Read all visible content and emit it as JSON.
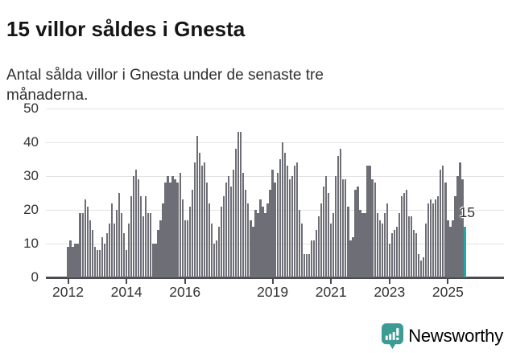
{
  "header": {
    "title": "15 villor såldes i Gnesta",
    "subtitle": "Antal sålda villor i Gnesta under de senaste tre månaderna."
  },
  "branding": {
    "logo_text": "Newsworthy",
    "logo_icon": "bar-chart-speech-bubble-icon",
    "logo_color": "#3d9b94"
  },
  "colors": {
    "bar": "#6e6e76",
    "highlight": "#23a7a7",
    "grid": "#e3e3e3",
    "axis": "#4a4a4f",
    "title_text": "#151515",
    "body_text": "#333333"
  },
  "chart_data": {
    "type": "bar",
    "title": "15 villor såldes i Gnesta",
    "subtitle": "Antal sålda villor i Gnesta under de senaste tre månaderna.",
    "xlabel": "",
    "ylabel": "",
    "ylim": [
      0,
      50
    ],
    "y_ticks": [
      0,
      10,
      20,
      30,
      40,
      50
    ],
    "grid": true,
    "legend": false,
    "x_start_label": "2012",
    "x_ticks": [
      {
        "label": "2012",
        "month_index": 0
      },
      {
        "label": "2014",
        "month_index": 24
      },
      {
        "label": "2016",
        "month_index": 48
      },
      {
        "label": "2019",
        "month_index": 84
      },
      {
        "label": "2021",
        "month_index": 108
      },
      {
        "label": "2023",
        "month_index": 132
      },
      {
        "label": "2025",
        "month_index": 156
      }
    ],
    "values": [
      9,
      11,
      9,
      10,
      10,
      19,
      19,
      23,
      21,
      17,
      14,
      9,
      8,
      8,
      12,
      10,
      13,
      16,
      22,
      16,
      20,
      25,
      19,
      13,
      8,
      16,
      24,
      30,
      32,
      29,
      24,
      18,
      24,
      19,
      19,
      10,
      10,
      14,
      17,
      22,
      28,
      30,
      28,
      30,
      29,
      28,
      31,
      23,
      17,
      17,
      21,
      26,
      34,
      42,
      37,
      33,
      34,
      28,
      22,
      16,
      10,
      11,
      15,
      21,
      24,
      28,
      30,
      27,
      32,
      38,
      43,
      43,
      31,
      26,
      22,
      17,
      15,
      20,
      19,
      23,
      21,
      19,
      22,
      26,
      32,
      28,
      31,
      35,
      40,
      37,
      33,
      29,
      30,
      33,
      34,
      20,
      16,
      7,
      7,
      7,
      11,
      11,
      14,
      18,
      22,
      27,
      30,
      25,
      16,
      19,
      30,
      36,
      38,
      29,
      29,
      21,
      11,
      12,
      26,
      27,
      20,
      19,
      19,
      33,
      33,
      29,
      28,
      19,
      17,
      16,
      19,
      22,
      10,
      13,
      14,
      15,
      19,
      24,
      25,
      26,
      18,
      18,
      14,
      13,
      7,
      5,
      6,
      16,
      22,
      23,
      22,
      23,
      24,
      32,
      33,
      28,
      17,
      15,
      17,
      24,
      30,
      34,
      29,
      15
    ],
    "highlight_index": 163,
    "annotation": {
      "label": "15",
      "index": 163
    }
  }
}
